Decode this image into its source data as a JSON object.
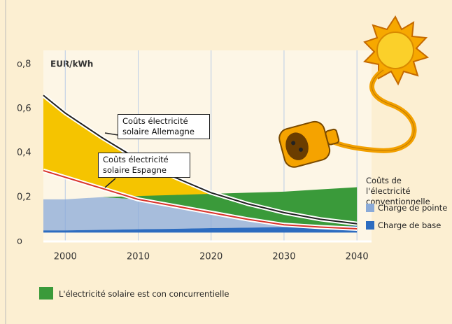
{
  "chart_data": {
    "type": "area",
    "y_label": "EUR/kWh",
    "x": [
      1997,
      2000,
      2005,
      2010,
      2015,
      2020,
      2025,
      2030,
      2035,
      2040
    ],
    "xlim": [
      1997,
      2042
    ],
    "xticks": [
      2000,
      2010,
      2020,
      2030,
      2040
    ],
    "ylim": [
      0,
      0.8
    ],
    "yticks": [
      {
        "value": 0,
        "label": "o"
      },
      {
        "value": 0.2,
        "label": "0,2"
      },
      {
        "value": 0.4,
        "label": "0,4"
      },
      {
        "value": 0.6,
        "label": "0,6"
      },
      {
        "value": 0.8,
        "label": "o,8"
      }
    ],
    "grid": true,
    "series": [
      {
        "name": "Coûts électricité solaire Allemagne",
        "color": "#222222",
        "values": [
          0.66,
          0.58,
          0.47,
          0.37,
          0.29,
          0.22,
          0.17,
          0.13,
          0.1,
          0.08
        ]
      },
      {
        "name": "Coûts électricité solaire Espagne",
        "color": "#d9342b",
        "values": [
          0.32,
          0.29,
          0.24,
          0.19,
          0.16,
          0.13,
          0.1,
          0.075,
          0.065,
          0.057
        ]
      },
      {
        "name": "Charge de pointe",
        "color": "#8aaad8",
        "values": [
          0.19,
          0.19,
          0.2,
          0.205,
          0.21,
          0.215,
          0.22,
          0.225,
          0.235,
          0.245
        ]
      },
      {
        "name": "Charge de base",
        "color": "#2d6cc0",
        "values": [
          0.05,
          0.05,
          0.052,
          0.055,
          0.057,
          0.06,
          0.062,
          0.065,
          0.067,
          0.07
        ]
      }
    ],
    "gap_color": "#f5c400",
    "legend_title": "Coûts de l'électricité conventionnelle",
    "legend_note": {
      "label": "L'électricité solaire est con concurrentielle",
      "color": "#3a9a3a"
    }
  }
}
